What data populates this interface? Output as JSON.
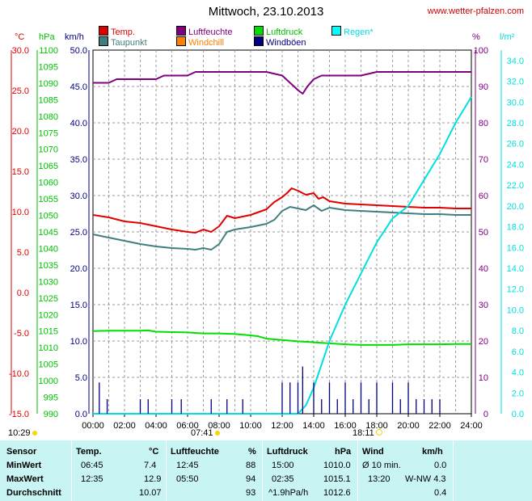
{
  "title": "Mittwoch, 23.10.2013",
  "site": "www.wetter-pfalzen.com",
  "legend": [
    {
      "label": "Temp.",
      "color": "#e00000"
    },
    {
      "label": "Luftfeuchte",
      "color": "#800080"
    },
    {
      "label": "Luftdruck",
      "color": "#00e000"
    },
    {
      "label": "Regen*",
      "color": "#00ffff"
    },
    {
      "label": "Taupunkt",
      "color": "#3f7f7f"
    },
    {
      "label": "Windchill",
      "color": "#ff8000"
    },
    {
      "label": "Windböen",
      "color": "#000080"
    }
  ],
  "units": {
    "temp": "°C",
    "pressure": "hPa",
    "wind": "km/h",
    "humidity": "%",
    "rain": "l/m²"
  },
  "colors": {
    "temp": "#e00000",
    "pressure": "#00c000",
    "wind": "#000080",
    "humidity": "#800080",
    "rain": "#00e0e0",
    "dewpoint": "#3f7f7f",
    "grid": "#9a9a9a"
  },
  "markers": {
    "sunrise": "07:41",
    "sunset": "18:11",
    "prev": "10:29"
  },
  "chart_data": {
    "type": "line",
    "xlabel": "",
    "x_ticks": [
      "00:00",
      "02:00",
      "04:00",
      "06:00",
      "08:00",
      "10:00",
      "12:00",
      "14:00",
      "16:00",
      "18:00",
      "20:00",
      "22:00",
      "24:00"
    ],
    "axes": {
      "temp": {
        "min": -15,
        "max": 30,
        "step": 5,
        "ticks": [
          "30.0",
          "25.0",
          "20.0",
          "15.0",
          "10.0",
          "5.0",
          "0.0",
          "-5.0",
          "-10.0",
          "-15.0"
        ]
      },
      "pressure": {
        "min": 990,
        "max": 1100,
        "step": 5
      },
      "wind": {
        "min": 0,
        "max": 50,
        "step": 5,
        "ticks": [
          "50.0",
          "45.0",
          "40.0",
          "35.0",
          "30.0",
          "25.0",
          "20.0",
          "15.0",
          "10.0",
          "5.0",
          "0.0"
        ]
      },
      "humidity": {
        "min": 0,
        "max": 100,
        "step": 10
      },
      "rain": {
        "min": 0,
        "max": 35,
        "step": 2,
        "ticks": [
          "34.0",
          "32.0",
          "30.0",
          "28.0",
          "26.0",
          "24.0",
          "22.0",
          "20.0",
          "18.0",
          "16.0",
          "14.0",
          "12.0",
          "10.0",
          "8.0",
          "6.0",
          "4.0",
          "2.0",
          "0.0"
        ]
      }
    },
    "series": [
      {
        "name": "Temp.",
        "axis": "temp",
        "x": [
          0,
          1,
          2,
          3,
          4,
          5,
          6,
          6.5,
          7,
          7.5,
          8,
          8.5,
          9,
          10,
          11,
          11.5,
          12,
          12.3,
          12.6,
          13,
          13.5,
          14,
          14.3,
          14.6,
          15,
          16,
          17,
          18,
          19,
          20,
          21,
          22,
          23,
          24
        ],
        "y": [
          9.6,
          9.3,
          8.8,
          8.6,
          8.2,
          7.8,
          7.5,
          7.4,
          7.8,
          7.5,
          8.2,
          9.5,
          9.2,
          9.6,
          10.3,
          11.2,
          11.8,
          12.3,
          12.9,
          12.6,
          12.1,
          12.3,
          11.6,
          11.8,
          11.3,
          11.0,
          10.9,
          10.8,
          10.7,
          10.6,
          10.5,
          10.5,
          10.4,
          10.4
        ]
      },
      {
        "name": "Taupunkt",
        "axis": "temp",
        "x": [
          0,
          1,
          2,
          3,
          4,
          5,
          6,
          6.5,
          7,
          7.5,
          8,
          8.5,
          9,
          10,
          11,
          11.5,
          12,
          12.5,
          13,
          13.5,
          14,
          14.5,
          15,
          16,
          17,
          18,
          19,
          20,
          21,
          22,
          23,
          24
        ],
        "y": [
          7.2,
          6.8,
          6.4,
          6.0,
          5.7,
          5.5,
          5.4,
          5.3,
          5.5,
          5.3,
          6.0,
          7.5,
          7.8,
          8.1,
          8.5,
          9.0,
          10.1,
          10.6,
          10.4,
          10.2,
          10.8,
          10.1,
          10.5,
          10.2,
          10.1,
          10.0,
          9.9,
          9.8,
          9.7,
          9.7,
          9.6,
          9.6
        ]
      },
      {
        "name": "Luftdruck",
        "axis": "pressure",
        "x": [
          0,
          1,
          2,
          3,
          3.5,
          4,
          5,
          6,
          7,
          8,
          9,
          10,
          10.5,
          11,
          12,
          13,
          14,
          15,
          16,
          17,
          18,
          19,
          20,
          21,
          22,
          23,
          24
        ],
        "y": [
          1015.0,
          1015.1,
          1015.1,
          1015.1,
          1015.2,
          1014.8,
          1014.7,
          1014.6,
          1014.3,
          1014.3,
          1014.1,
          1013.7,
          1013.4,
          1012.7,
          1012.3,
          1011.9,
          1011.6,
          1011.3,
          1011.0,
          1010.8,
          1010.8,
          1010.8,
          1011.0,
          1011.0,
          1011.0,
          1011.1,
          1011.1
        ]
      },
      {
        "name": "Luftfeuchte",
        "axis": "humidity",
        "x": [
          0,
          1,
          1.5,
          2,
          3,
          4,
          4.5,
          5,
          6,
          6.5,
          7,
          8,
          9,
          10,
          11,
          12,
          12.5,
          13,
          13.3,
          13.6,
          14,
          14.5,
          15,
          16,
          17,
          18,
          19,
          20,
          21,
          22,
          23,
          24
        ],
        "y": [
          91,
          91,
          92,
          92,
          92,
          92,
          93,
          93,
          93,
          94,
          94,
          94,
          94,
          94,
          94,
          93,
          91,
          89,
          88,
          90,
          92,
          93,
          93,
          93,
          93,
          94,
          94,
          94,
          94,
          94,
          94,
          94
        ]
      },
      {
        "name": "Regen*",
        "axis": "rain",
        "x": [
          0,
          13,
          13.5,
          14,
          15,
          16,
          17,
          18,
          19,
          20,
          21,
          22,
          23,
          24
        ],
        "y": [
          0,
          0,
          0.8,
          2.5,
          7.0,
          10.5,
          13.5,
          16.5,
          18.8,
          20.0,
          22.5,
          25.0,
          28.0,
          30.5
        ]
      },
      {
        "name": "Windböen",
        "axis": "wind",
        "x": [
          0.4,
          0.9,
          3,
          3.5,
          5,
          5.6,
          7.5,
          8.5,
          9.5,
          12,
          12.5,
          13,
          13.3,
          14,
          14.5,
          15,
          15.5,
          16,
          16.5,
          17,
          17.5,
          18,
          19,
          19.5,
          20,
          20.5,
          21,
          21.5,
          22
        ],
        "y": [
          4.3,
          2,
          2,
          2,
          2,
          2,
          2,
          2,
          2,
          4.3,
          4.3,
          4.3,
          6.5,
          4.3,
          2,
          4.3,
          2,
          4.3,
          2,
          4.3,
          2,
          4.3,
          4.3,
          2,
          4.3,
          2,
          2,
          2,
          2
        ]
      }
    ]
  },
  "stats": {
    "headers": {
      "sensor": "Sensor",
      "temp": "Temp.",
      "temp_unit": "°C",
      "hum": "Luftfeuchte",
      "hum_unit": "%",
      "press": "Luftdruck",
      "press_unit": "hPa",
      "wind": "Wind",
      "wind_unit": "km/h"
    },
    "min": {
      "label": "MinWert",
      "temp_time": "06:45",
      "temp": "7.4",
      "hum_time": "12:45",
      "hum": "88",
      "press_time": "15:00",
      "press": "1010.0",
      "wind_time": "Ø 10 min.",
      "wind": "0.0"
    },
    "max": {
      "label": "MaxWert",
      "temp_time": "12:35",
      "temp": "12.9",
      "hum_time": "05:50",
      "hum": "94",
      "press_time": "02:35",
      "press": "1015.1",
      "wind_time": "13:20",
      "wind": "W-NW 4.3"
    },
    "avg": {
      "label": "Durchschnitt",
      "temp": "10.07",
      "hum": "93",
      "press_trend": "^1.9hPa/h",
      "press": "1012.6",
      "wind": "0.4"
    }
  }
}
